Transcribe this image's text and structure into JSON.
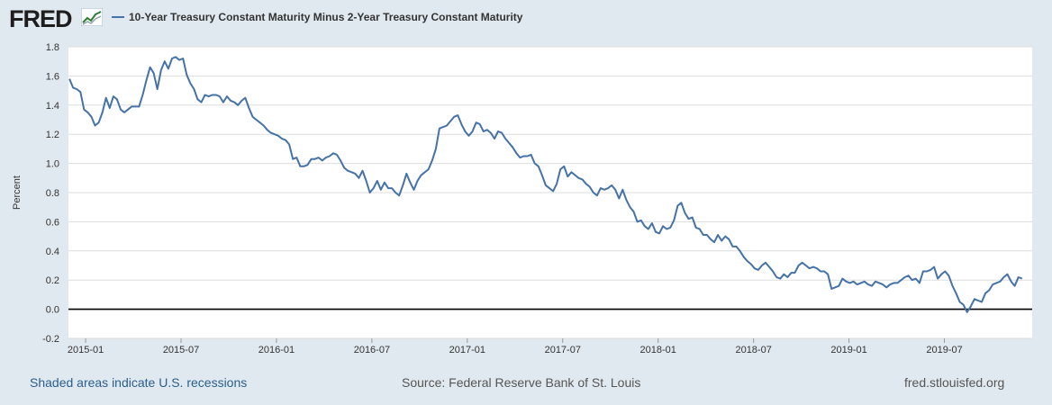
{
  "header": {
    "logo_text": "FRED",
    "chart_title": "10-Year Treasury Constant Maturity Minus 2-Year Treasury Constant Maturity"
  },
  "footer": {
    "recessions_note": "Shaded areas indicate U.S. recessions",
    "source": "Source: Federal Reserve Bank of St. Louis",
    "site": "fred.stlouisfed.org"
  },
  "colors": {
    "series": "#4572a7",
    "background": "#e1e9f0",
    "plot": "#ffffff",
    "grid": "#dddddd",
    "zero_line": "#000000"
  },
  "chart_data": {
    "type": "line",
    "title": "10-Year Treasury Constant Maturity Minus 2-Year Treasury Constant Maturity",
    "xlabel": "",
    "ylabel": "Percent",
    "ylim": [
      -0.2,
      1.8
    ],
    "yticks": [
      "-0.2",
      "0.0",
      "0.2",
      "0.4",
      "0.6",
      "0.8",
      "1.0",
      "1.2",
      "1.4",
      "1.6",
      "1.8"
    ],
    "xlim": [
      2014.91,
      2019.96
    ],
    "xticks": [
      {
        "label": "2015-01",
        "t": 2015.0
      },
      {
        "label": "2015-07",
        "t": 2015.5
      },
      {
        "label": "2016-01",
        "t": 2016.0
      },
      {
        "label": "2016-07",
        "t": 2016.5
      },
      {
        "label": "2017-01",
        "t": 2017.0
      },
      {
        "label": "2017-07",
        "t": 2017.5
      },
      {
        "label": "2018-01",
        "t": 2018.0
      },
      {
        "label": "2018-07",
        "t": 2018.5
      },
      {
        "label": "2019-01",
        "t": 2019.0
      },
      {
        "label": "2019-07",
        "t": 2019.5
      }
    ],
    "grid": true,
    "series": [
      {
        "name": "10-Year Treasury Constant Maturity Minus 2-Year Treasury Constant Maturity",
        "start": 2014.915,
        "step": 0.0192,
        "values": [
          1.58,
          1.52,
          1.51,
          1.49,
          1.37,
          1.35,
          1.32,
          1.26,
          1.28,
          1.35,
          1.45,
          1.38,
          1.46,
          1.44,
          1.37,
          1.35,
          1.37,
          1.39,
          1.39,
          1.39,
          1.47,
          1.57,
          1.66,
          1.62,
          1.51,
          1.64,
          1.7,
          1.65,
          1.72,
          1.73,
          1.71,
          1.72,
          1.61,
          1.55,
          1.51,
          1.44,
          1.42,
          1.47,
          1.46,
          1.47,
          1.47,
          1.46,
          1.42,
          1.46,
          1.43,
          1.42,
          1.4,
          1.43,
          1.45,
          1.38,
          1.32,
          1.3,
          1.28,
          1.26,
          1.23,
          1.21,
          1.2,
          1.19,
          1.17,
          1.16,
          1.13,
          1.03,
          1.04,
          0.98,
          0.98,
          0.99,
          1.03,
          1.03,
          1.04,
          1.02,
          1.04,
          1.05,
          1.07,
          1.06,
          1.02,
          0.97,
          0.95,
          0.94,
          0.93,
          0.9,
          0.95,
          0.88,
          0.8,
          0.83,
          0.88,
          0.82,
          0.87,
          0.83,
          0.83,
          0.8,
          0.78,
          0.85,
          0.93,
          0.87,
          0.82,
          0.88,
          0.92,
          0.94,
          0.96,
          1.02,
          1.1,
          1.24,
          1.25,
          1.26,
          1.29,
          1.32,
          1.33,
          1.27,
          1.22,
          1.19,
          1.22,
          1.28,
          1.27,
          1.22,
          1.23,
          1.21,
          1.17,
          1.22,
          1.21,
          1.17,
          1.14,
          1.11,
          1.07,
          1.04,
          1.05,
          1.05,
          1.06,
          1.0,
          0.98,
          0.92,
          0.85,
          0.83,
          0.81,
          0.86,
          0.96,
          0.98,
          0.91,
          0.94,
          0.92,
          0.9,
          0.89,
          0.86,
          0.84,
          0.8,
          0.78,
          0.83,
          0.82,
          0.83,
          0.85,
          0.82,
          0.76,
          0.82,
          0.75,
          0.7,
          0.67,
          0.6,
          0.61,
          0.57,
          0.55,
          0.59,
          0.53,
          0.52,
          0.57,
          0.55,
          0.56,
          0.61,
          0.71,
          0.73,
          0.66,
          0.62,
          0.63,
          0.56,
          0.55,
          0.51,
          0.51,
          0.48,
          0.46,
          0.51,
          0.47,
          0.5,
          0.48,
          0.43,
          0.43,
          0.4,
          0.36,
          0.33,
          0.31,
          0.28,
          0.27,
          0.3,
          0.32,
          0.29,
          0.26,
          0.22,
          0.21,
          0.24,
          0.22,
          0.25,
          0.25,
          0.3,
          0.32,
          0.3,
          0.28,
          0.29,
          0.28,
          0.26,
          0.26,
          0.24,
          0.14,
          0.15,
          0.16,
          0.21,
          0.19,
          0.18,
          0.19,
          0.17,
          0.18,
          0.19,
          0.17,
          0.16,
          0.19,
          0.18,
          0.17,
          0.15,
          0.17,
          0.18,
          0.18,
          0.2,
          0.22,
          0.23,
          0.2,
          0.21,
          0.18,
          0.26,
          0.26,
          0.27,
          0.29,
          0.21,
          0.24,
          0.26,
          0.23,
          0.16,
          0.11,
          0.05,
          0.03,
          -0.02,
          0.02,
          0.07,
          0.06,
          0.05,
          0.11,
          0.13,
          0.17,
          0.18,
          0.19,
          0.22,
          0.24,
          0.19,
          0.16,
          0.22,
          0.21
        ]
      }
    ]
  }
}
